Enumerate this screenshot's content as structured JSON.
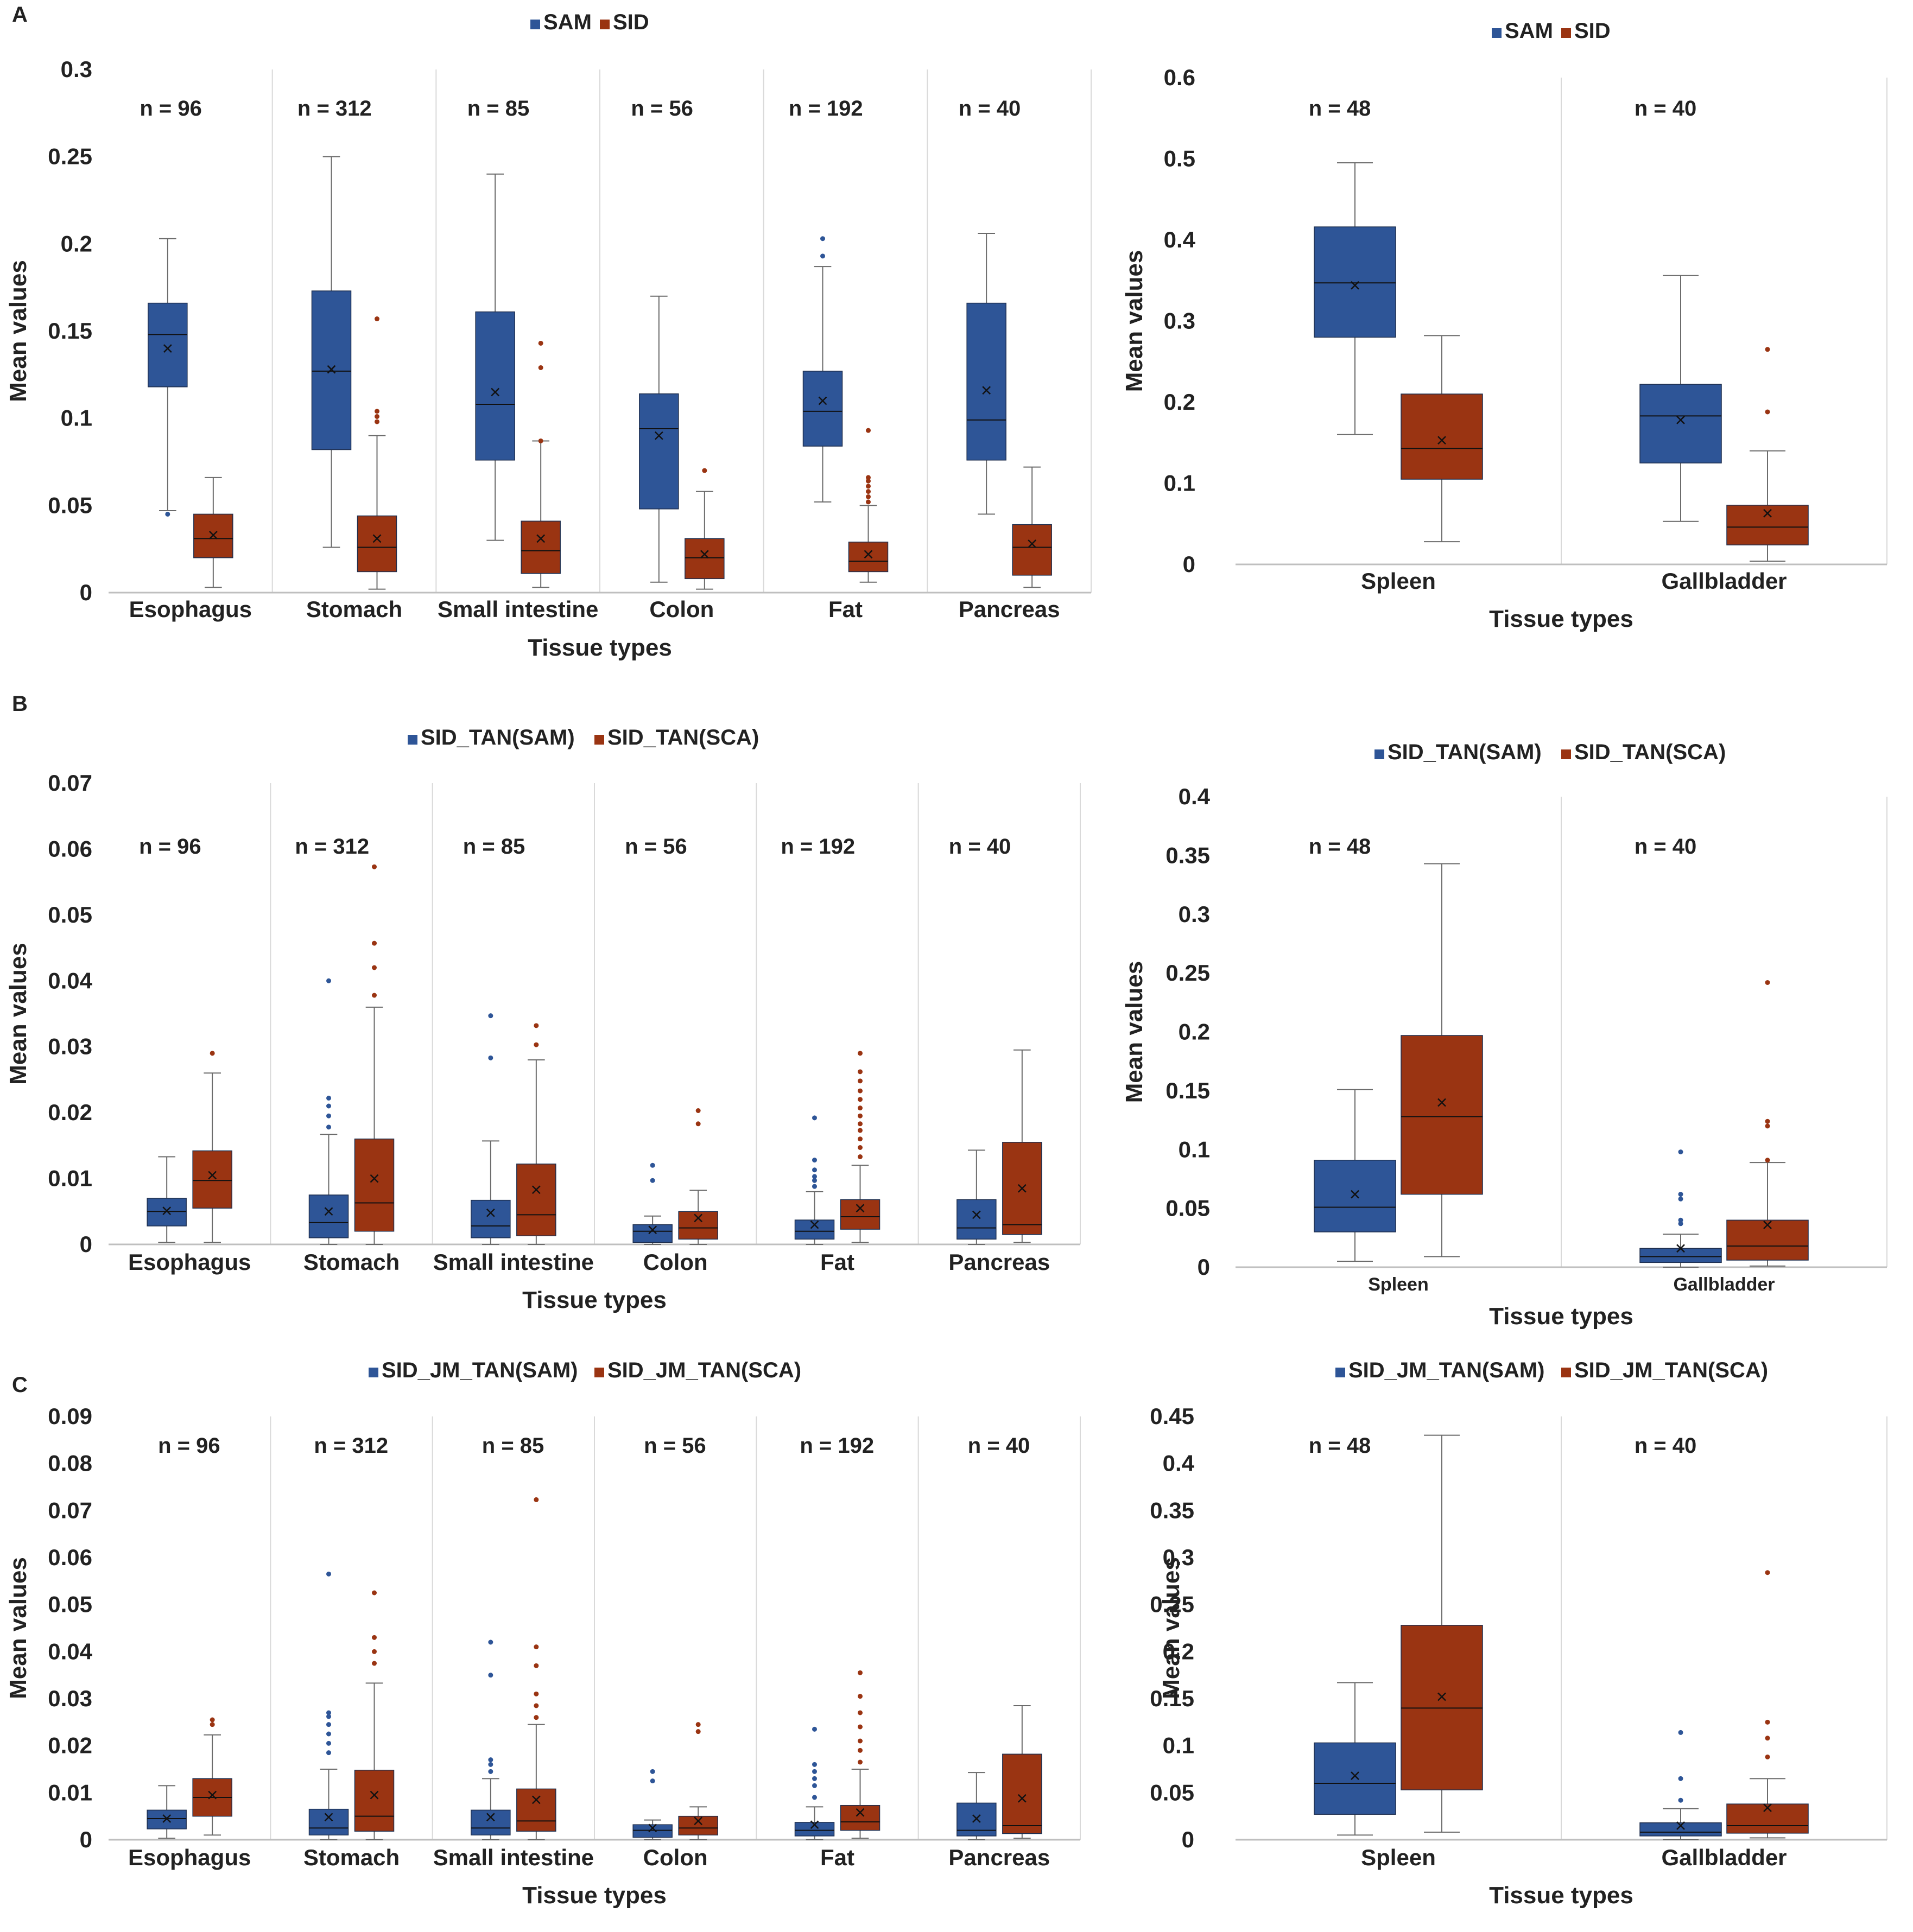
{
  "figure": {
    "colors": {
      "blue": "#2E5597",
      "orange": "#9A3412",
      "whisker": "#6b6b6b",
      "grid": "#d9d9d9",
      "axis": "#bfbfbf"
    }
  },
  "chart_data": [
    {
      "id": "A-left",
      "panel_label": "A",
      "type": "box",
      "legend": [
        "SAM",
        "SID"
      ],
      "ylabel": "Mean values",
      "xlabel": "Tissue types",
      "yticks": [
        "0",
        "0.05",
        "0.1",
        "0.15",
        "0.2",
        "0.25",
        "0.3"
      ],
      "ylim": [
        0,
        0.3
      ],
      "categories": [
        "Esophagus",
        "Stomach",
        "Small intestine",
        "Colon",
        "Fat",
        "Pancreas"
      ],
      "n_labels": [
        "n = 96",
        "n = 312",
        "n = 85",
        "n = 56",
        "n = 192",
        "n = 40"
      ],
      "series": [
        {
          "name": "SAM",
          "boxes": [
            {
              "min": 0.047,
              "q1": 0.118,
              "median": 0.148,
              "q3": 0.166,
              "max": 0.203,
              "mean": 0.14,
              "outliers": [
                0.045
              ]
            },
            {
              "min": 0.026,
              "q1": 0.082,
              "median": 0.127,
              "q3": 0.173,
              "max": 0.25,
              "mean": 0.128,
              "outliers": []
            },
            {
              "min": 0.03,
              "q1": 0.076,
              "median": 0.108,
              "q3": 0.161,
              "max": 0.24,
              "mean": 0.115,
              "outliers": []
            },
            {
              "min": 0.006,
              "q1": 0.048,
              "median": 0.094,
              "q3": 0.114,
              "max": 0.17,
              "mean": 0.09,
              "outliers": []
            },
            {
              "min": 0.052,
              "q1": 0.084,
              "median": 0.104,
              "q3": 0.127,
              "max": 0.187,
              "mean": 0.11,
              "outliers": [
                0.193,
                0.203
              ]
            },
            {
              "min": 0.045,
              "q1": 0.076,
              "median": 0.099,
              "q3": 0.166,
              "max": 0.206,
              "mean": 0.116,
              "outliers": []
            }
          ]
        },
        {
          "name": "SID",
          "boxes": [
            {
              "min": 0.003,
              "q1": 0.02,
              "median": 0.031,
              "q3": 0.045,
              "max": 0.066,
              "mean": 0.033,
              "outliers": []
            },
            {
              "min": 0.002,
              "q1": 0.012,
              "median": 0.026,
              "q3": 0.044,
              "max": 0.09,
              "mean": 0.031,
              "outliers": [
                0.098,
                0.101,
                0.104,
                0.157
              ]
            },
            {
              "min": 0.003,
              "q1": 0.011,
              "median": 0.024,
              "q3": 0.041,
              "max": 0.087,
              "mean": 0.031,
              "outliers": [
                0.087,
                0.129,
                0.143
              ]
            },
            {
              "min": 0.002,
              "q1": 0.008,
              "median": 0.02,
              "q3": 0.031,
              "max": 0.058,
              "mean": 0.022,
              "outliers": [
                0.07
              ]
            },
            {
              "min": 0.006,
              "q1": 0.012,
              "median": 0.018,
              "q3": 0.029,
              "max": 0.05,
              "mean": 0.022,
              "outliers": [
                0.052,
                0.055,
                0.058,
                0.061,
                0.064,
                0.066,
                0.093
              ]
            },
            {
              "min": 0.003,
              "q1": 0.01,
              "median": 0.026,
              "q3": 0.039,
              "max": 0.072,
              "mean": 0.028,
              "outliers": []
            }
          ]
        }
      ]
    },
    {
      "id": "A-right",
      "panel_label": "",
      "type": "box",
      "legend": [
        "SAM",
        "SID"
      ],
      "ylabel": "Mean values",
      "xlabel": "Tissue types",
      "yticks": [
        "0",
        "0.1",
        "0.2",
        "0.3",
        "0.4",
        "0.5",
        "0.6"
      ],
      "ylim": [
        0,
        0.6
      ],
      "categories": [
        "Spleen",
        "Gallbladder"
      ],
      "n_labels": [
        "n = 48",
        "n = 40"
      ],
      "series": [
        {
          "name": "SAM",
          "boxes": [
            {
              "min": 0.16,
              "q1": 0.28,
              "median": 0.347,
              "q3": 0.416,
              "max": 0.495,
              "mean": 0.344,
              "outliers": []
            },
            {
              "min": 0.053,
              "q1": 0.125,
              "median": 0.183,
              "q3": 0.222,
              "max": 0.356,
              "mean": 0.178,
              "outliers": []
            }
          ]
        },
        {
          "name": "SID",
          "boxes": [
            {
              "min": 0.028,
              "q1": 0.105,
              "median": 0.143,
              "q3": 0.21,
              "max": 0.282,
              "mean": 0.153,
              "outliers": []
            },
            {
              "min": 0.004,
              "q1": 0.024,
              "median": 0.046,
              "q3": 0.073,
              "max": 0.14,
              "mean": 0.063,
              "outliers": [
                0.188,
                0.265
              ]
            }
          ]
        }
      ]
    },
    {
      "id": "B-left",
      "panel_label": "B",
      "type": "box",
      "legend": [
        "SID_TAN(SAM)",
        "SID_TAN(SCA)"
      ],
      "ylabel": "Mean values",
      "xlabel": "Tissue types",
      "yticks": [
        "0",
        "0.01",
        "0.02",
        "0.03",
        "0.04",
        "0.05",
        "0.06",
        "0.07"
      ],
      "ylim": [
        0,
        0.07
      ],
      "categories": [
        "Esophagus",
        "Stomach",
        "Small intestine",
        "Colon",
        "Fat",
        "Pancreas"
      ],
      "n_labels": [
        "n = 96",
        "n = 312",
        "n = 85",
        "n = 56",
        "n = 192",
        "n = 40"
      ],
      "series": [
        {
          "name": "SID_TAN(SAM)",
          "boxes": [
            {
              "min": 0.0003,
              "q1": 0.0028,
              "median": 0.005,
              "q3": 0.007,
              "max": 0.0133,
              "mean": 0.0051,
              "outliers": []
            },
            {
              "min": 0.0,
              "q1": 0.001,
              "median": 0.0033,
              "q3": 0.0075,
              "max": 0.0167,
              "mean": 0.005,
              "outliers": [
                0.0178,
                0.0195,
                0.021,
                0.0222,
                0.04
              ]
            },
            {
              "min": 0.0,
              "q1": 0.001,
              "median": 0.0028,
              "q3": 0.0067,
              "max": 0.0157,
              "mean": 0.0048,
              "outliers": [
                0.0283,
                0.0347
              ]
            },
            {
              "min": 0.0,
              "q1": 0.0003,
              "median": 0.002,
              "q3": 0.003,
              "max": 0.0043,
              "mean": 0.0022,
              "outliers": [
                0.0097,
                0.012
              ]
            },
            {
              "min": 0.0,
              "q1": 0.0008,
              "median": 0.002,
              "q3": 0.0037,
              "max": 0.008,
              "mean": 0.003,
              "outliers": [
                0.0088,
                0.0097,
                0.0103,
                0.0113,
                0.0128,
                0.0192
              ]
            },
            {
              "min": 0.0,
              "q1": 0.0008,
              "median": 0.0025,
              "q3": 0.0068,
              "max": 0.0143,
              "mean": 0.0045,
              "outliers": []
            }
          ]
        },
        {
          "name": "SID_TAN(SCA)",
          "boxes": [
            {
              "min": 0.0003,
              "q1": 0.0055,
              "median": 0.0097,
              "q3": 0.0142,
              "max": 0.026,
              "mean": 0.0105,
              "outliers": [
                0.029
              ]
            },
            {
              "min": 0.0,
              "q1": 0.002,
              "median": 0.0063,
              "q3": 0.016,
              "max": 0.036,
              "mean": 0.01,
              "outliers": [
                0.0378,
                0.042,
                0.0457,
                0.0573
              ]
            },
            {
              "min": 0.0,
              "q1": 0.0013,
              "median": 0.0045,
              "q3": 0.0122,
              "max": 0.028,
              "mean": 0.0083,
              "outliers": [
                0.0303,
                0.0332
              ]
            },
            {
              "min": 0.0,
              "q1": 0.0008,
              "median": 0.0025,
              "q3": 0.005,
              "max": 0.0082,
              "mean": 0.004,
              "outliers": [
                0.0183,
                0.0203
              ]
            },
            {
              "min": 0.0003,
              "q1": 0.0023,
              "median": 0.0042,
              "q3": 0.0068,
              "max": 0.012,
              "mean": 0.0055,
              "outliers": [
                0.0133,
                0.0147,
                0.016,
                0.0173,
                0.0183,
                0.0195,
                0.0207,
                0.022,
                0.0233,
                0.0248,
                0.0262,
                0.029
              ]
            },
            {
              "min": 0.0003,
              "q1": 0.0015,
              "median": 0.003,
              "q3": 0.0155,
              "max": 0.0295,
              "mean": 0.0085,
              "outliers": []
            }
          ]
        }
      ]
    },
    {
      "id": "B-right",
      "panel_label": "",
      "type": "box",
      "legend": [
        "SID_TAN(SAM)",
        "SID_TAN(SCA)"
      ],
      "ylabel": "Mean values",
      "xlabel": "Tissue types",
      "yticks": [
        "0",
        "0.05",
        "0.1",
        "0.15",
        "0.2",
        "0.25",
        "0.3",
        "0.35",
        "0.4"
      ],
      "ylim": [
        0,
        0.4
      ],
      "categories": [
        "Spleen",
        "Gallbladder"
      ],
      "n_labels": [
        "n = 48",
        "n = 40"
      ],
      "series": [
        {
          "name": "SID_TAN(SAM)",
          "boxes": [
            {
              "min": 0.005,
              "q1": 0.03,
              "median": 0.051,
              "q3": 0.091,
              "max": 0.151,
              "mean": 0.062,
              "outliers": []
            },
            {
              "min": 0.0,
              "q1": 0.004,
              "median": 0.009,
              "q3": 0.016,
              "max": 0.028,
              "mean": 0.016,
              "outliers": [
                0.037,
                0.04,
                0.058,
                0.062,
                0.098
              ]
            }
          ]
        },
        {
          "name": "SID_TAN(SCA)",
          "boxes": [
            {
              "min": 0.009,
              "q1": 0.062,
              "median": 0.128,
              "q3": 0.197,
              "max": 0.343,
              "mean": 0.14,
              "outliers": []
            },
            {
              "min": 0.001,
              "q1": 0.006,
              "median": 0.018,
              "q3": 0.04,
              "max": 0.089,
              "mean": 0.036,
              "outliers": [
                0.091,
                0.12,
                0.124,
                0.242
              ]
            }
          ]
        }
      ]
    },
    {
      "id": "C-left",
      "panel_label": "C",
      "type": "box",
      "legend": [
        "SID_JM_TAN(SAM)",
        "SID_JM_TAN(SCA)"
      ],
      "ylabel": "Mean values",
      "xlabel": "Tissue types",
      "yticks": [
        "0",
        "0.01",
        "0.02",
        "0.03",
        "0.04",
        "0.05",
        "0.06",
        "0.07",
        "0.08",
        "0.09"
      ],
      "ylim": [
        0,
        0.09
      ],
      "categories": [
        "Esophagus",
        "Stomach",
        "Small intestine",
        "Colon",
        "Fat",
        "Pancreas"
      ],
      "n_labels": [
        "n = 96",
        "n = 312",
        "n = 85",
        "n = 56",
        "n = 192",
        "n = 40"
      ],
      "series": [
        {
          "name": "SID_JM_TAN(SAM)",
          "boxes": [
            {
              "min": 0.0003,
              "q1": 0.0023,
              "median": 0.0045,
              "q3": 0.0063,
              "max": 0.0115,
              "mean": 0.0045,
              "outliers": []
            },
            {
              "min": 0.0,
              "q1": 0.001,
              "median": 0.0025,
              "q3": 0.0065,
              "max": 0.015,
              "mean": 0.0048,
              "outliers": [
                0.0185,
                0.0205,
                0.0225,
                0.0245,
                0.0262,
                0.027,
                0.0565
              ]
            },
            {
              "min": 0.0,
              "q1": 0.001,
              "median": 0.0025,
              "q3": 0.0063,
              "max": 0.013,
              "mean": 0.0048,
              "outliers": [
                0.0145,
                0.016,
                0.017,
                0.035,
                0.042
              ]
            },
            {
              "min": 0.0,
              "q1": 0.0005,
              "median": 0.002,
              "q3": 0.0032,
              "max": 0.0042,
              "mean": 0.0025,
              "outliers": [
                0.0125,
                0.0145
              ]
            },
            {
              "min": 0.0,
              "q1": 0.0008,
              "median": 0.002,
              "q3": 0.0037,
              "max": 0.007,
              "mean": 0.0032,
              "outliers": [
                0.009,
                0.0115,
                0.013,
                0.0145,
                0.016,
                0.0235
              ]
            },
            {
              "min": 0.0,
              "q1": 0.0008,
              "median": 0.002,
              "q3": 0.0078,
              "max": 0.0143,
              "mean": 0.0045,
              "outliers": []
            }
          ]
        },
        {
          "name": "SID_JM_TAN(SCA)",
          "boxes": [
            {
              "min": 0.001,
              "q1": 0.005,
              "median": 0.009,
              "q3": 0.013,
              "max": 0.0223,
              "mean": 0.0095,
              "outliers": [
                0.0245,
                0.0255
              ]
            },
            {
              "min": 0.0,
              "q1": 0.0018,
              "median": 0.005,
              "q3": 0.0148,
              "max": 0.0333,
              "mean": 0.0095,
              "outliers": [
                0.0375,
                0.04,
                0.043,
                0.0525
              ]
            },
            {
              "min": 0.0,
              "q1": 0.0018,
              "median": 0.004,
              "q3": 0.0108,
              "max": 0.0245,
              "mean": 0.0085,
              "outliers": [
                0.026,
                0.0285,
                0.031,
                0.037,
                0.041,
                0.0723
              ]
            },
            {
              "min": 0.0,
              "q1": 0.001,
              "median": 0.0025,
              "q3": 0.005,
              "max": 0.007,
              "mean": 0.004,
              "outliers": [
                0.023,
                0.0245
              ]
            },
            {
              "min": 0.0003,
              "q1": 0.002,
              "median": 0.0038,
              "q3": 0.0073,
              "max": 0.015,
              "mean": 0.0058,
              "outliers": [
                0.0165,
                0.019,
                0.021,
                0.024,
                0.027,
                0.0305,
                0.0355
              ]
            },
            {
              "min": 0.0003,
              "q1": 0.0013,
              "median": 0.003,
              "q3": 0.0182,
              "max": 0.0285,
              "mean": 0.0088,
              "outliers": []
            }
          ]
        }
      ]
    },
    {
      "id": "C-right",
      "panel_label": "",
      "type": "box",
      "legend": [
        "SID_JM_TAN(SAM)",
        "SID_JM_TAN(SCA)"
      ],
      "ylabel": "Mean values",
      "xlabel": "Tissue types",
      "yticks": [
        "0",
        "0.05",
        "0.1",
        "0.15",
        "0.2",
        "0.25",
        "0.3",
        "0.35",
        "0.4",
        "0.45"
      ],
      "ylim": [
        0,
        0.45
      ],
      "categories": [
        "Spleen",
        "Gallbladder"
      ],
      "n_labels": [
        "n = 48",
        "n = 40"
      ],
      "series": [
        {
          "name": "SID_JM_TAN(SAM)",
          "boxes": [
            {
              "min": 0.005,
              "q1": 0.027,
              "median": 0.06,
              "q3": 0.103,
              "max": 0.167,
              "mean": 0.068,
              "outliers": []
            },
            {
              "min": 0.0,
              "q1": 0.004,
              "median": 0.008,
              "q3": 0.018,
              "max": 0.033,
              "mean": 0.015,
              "outliers": [
                0.042,
                0.065,
                0.114
              ]
            }
          ]
        },
        {
          "name": "SID_JM_TAN(SCA)",
          "boxes": [
            {
              "min": 0.008,
              "q1": 0.053,
              "median": 0.14,
              "q3": 0.228,
              "max": 0.43,
              "mean": 0.152,
              "outliers": []
            },
            {
              "min": 0.002,
              "q1": 0.007,
              "median": 0.015,
              "q3": 0.038,
              "max": 0.065,
              "mean": 0.034,
              "outliers": [
                0.088,
                0.108,
                0.125,
                0.284
              ]
            }
          ]
        }
      ]
    }
  ]
}
